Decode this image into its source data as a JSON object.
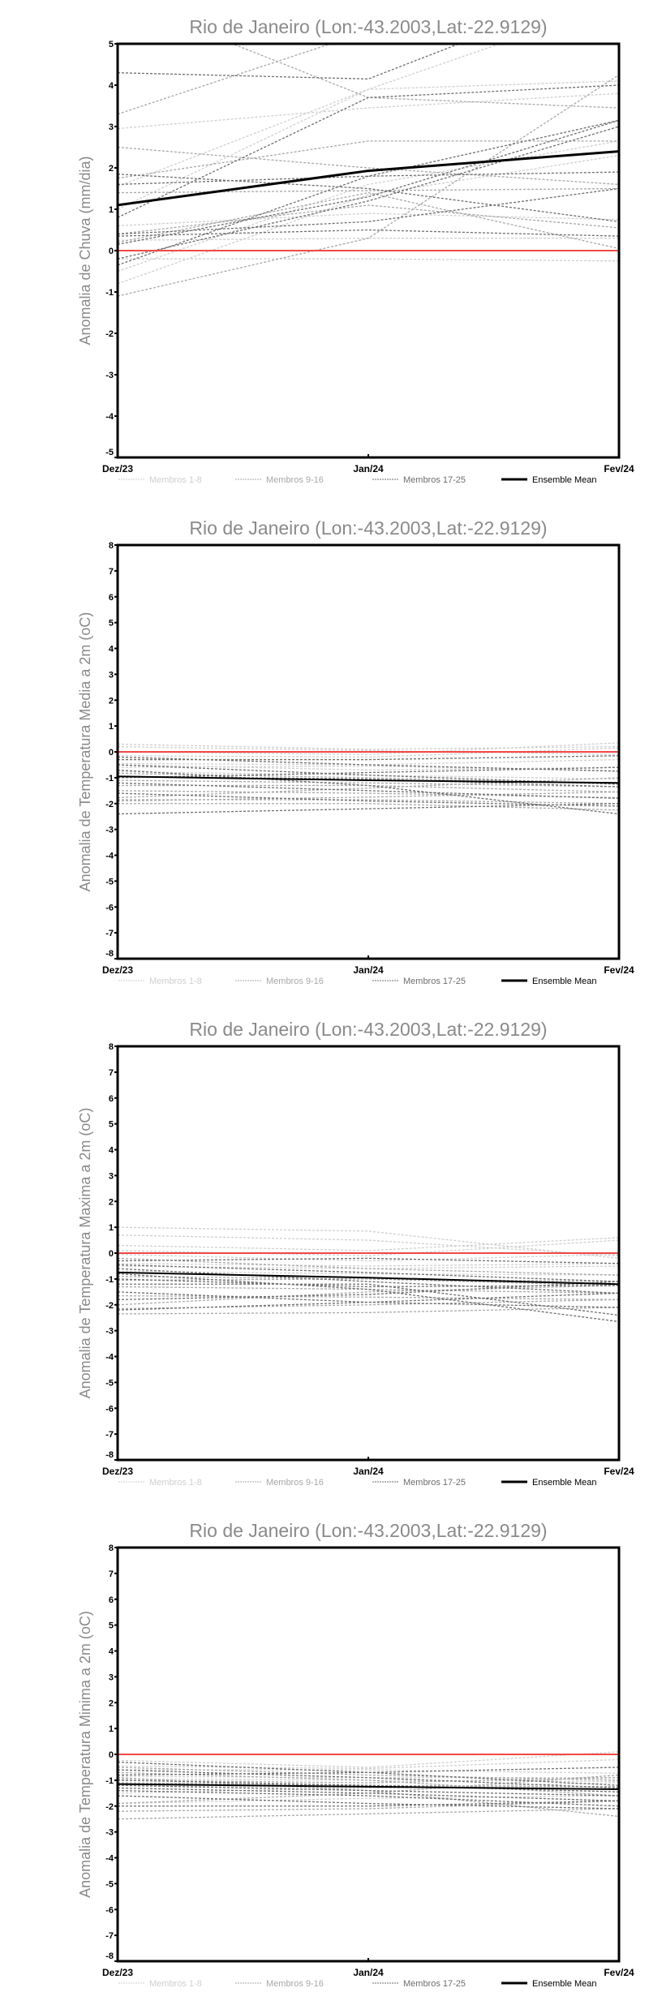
{
  "colors": {
    "members_1_8": "#cfcfcf",
    "members_9_16": "#a8a8a8",
    "members_17_25": "#6e6e6e",
    "ensemble_mean": "#000000",
    "zero_line": "#f04848"
  },
  "legend": {
    "members_1_8": "Membros 1-8",
    "members_9_16": "Membros 9-16",
    "members_17_25": "Membros 17-25",
    "ensemble_mean": "Ensemble Mean"
  },
  "chart_data": [
    {
      "type": "line",
      "title": "Rio de Janeiro (Lon:-43.2003,Lat:-22.9129)",
      "ylabel": "Anomalia de Chuva (mm/dia)",
      "xlabel": "",
      "categories": [
        "Dez/23",
        "Jan/24",
        "Fev/24"
      ],
      "ylim": [
        -5,
        5
      ],
      "yticks": [
        "-5",
        "-4",
        "-3",
        "-2",
        "-1",
        "0",
        "1",
        "2",
        "3",
        "4",
        "5"
      ],
      "ensemble_mean": [
        1.1,
        1.93,
        2.4
      ],
      "members": [
        [
          2.95,
          3.45,
          3.8
        ],
        [
          1.55,
          3.9,
          4.1
        ],
        [
          1.0,
          3.9,
          6.0
        ],
        [
          0.6,
          0.9,
          0.75
        ],
        [
          0.25,
          0.3,
          0.3
        ],
        [
          -0.5,
          1.6,
          2.65
        ],
        [
          -0.8,
          1.35,
          2.3
        ],
        [
          -0.2,
          -0.2,
          -0.25
        ],
        [
          3.3,
          5.3,
          6.5
        ],
        [
          2.5,
          2.0,
          1.6
        ],
        [
          6.1,
          3.7,
          3.45
        ],
        [
          1.75,
          2.65,
          2.65
        ],
        [
          -1.1,
          0.3,
          4.25
        ],
        [
          0.2,
          1.4,
          0.05
        ],
        [
          0.4,
          1.1,
          0.55
        ],
        [
          1.4,
          1.45,
          1.5
        ],
        [
          4.3,
          4.15,
          6.5
        ],
        [
          1.85,
          1.5,
          0.7
        ],
        [
          1.6,
          1.8,
          1.9
        ],
        [
          0.8,
          3.7,
          4.0
        ],
        [
          0.4,
          0.7,
          1.5
        ],
        [
          0.35,
          0.5,
          0.35
        ],
        [
          0.15,
          1.3,
          3.15
        ],
        [
          -0.2,
          1.2,
          3.0
        ],
        [
          -0.35,
          1.8,
          3.15
        ]
      ]
    },
    {
      "type": "line",
      "title": "Rio de Janeiro (Lon:-43.2003,Lat:-22.9129)",
      "ylabel": "Anomalia de Temperatura Media a 2m (oC)",
      "xlabel": "",
      "categories": [
        "Dez/23",
        "Jan/24",
        "Fev/24"
      ],
      "ylim": [
        -8,
        8
      ],
      "yticks": [
        "-8",
        "-7",
        "-6",
        "-5",
        "-4",
        "-3",
        "-2",
        "-1",
        "0",
        "1",
        "2",
        "3",
        "4",
        "5",
        "6",
        "7",
        "8"
      ],
      "ensemble_mean": [
        -0.95,
        -1.1,
        -1.2
      ],
      "members": [
        [
          0.3,
          0.1,
          0.2
        ],
        [
          0.2,
          0.05,
          -0.1
        ],
        [
          0.0,
          -0.1,
          0.35
        ],
        [
          -0.15,
          -0.2,
          0.15
        ],
        [
          -0.45,
          -0.5,
          -0.3
        ],
        [
          -0.5,
          -0.7,
          -0.6
        ],
        [
          -0.6,
          -0.55,
          -0.73
        ],
        [
          -0.77,
          -0.9,
          -1.05
        ],
        [
          -0.83,
          -1.0,
          -1.25
        ],
        [
          -1.1,
          -1.2,
          -1.35
        ],
        [
          -1.3,
          -1.3,
          -1.55
        ],
        [
          -1.5,
          -1.6,
          -1.77
        ],
        [
          -1.77,
          -1.4,
          -1.0
        ],
        [
          -1.85,
          -1.85,
          -2.0
        ],
        [
          -1.9,
          -1.75,
          -1.55
        ],
        [
          -2.0,
          -2.0,
          -2.25
        ],
        [
          -2.4,
          -2.2,
          -2.0
        ],
        [
          -0.2,
          -0.5,
          -0.75
        ],
        [
          -0.95,
          -1.05,
          -1.35
        ],
        [
          -0.7,
          -1.3,
          -2.4
        ],
        [
          -1.0,
          -0.8,
          -0.6
        ],
        [
          -0.5,
          -0.9,
          -1.25
        ],
        [
          -1.2,
          -1.5,
          -1.8
        ],
        [
          -0.3,
          -0.3,
          -0.15
        ],
        [
          -1.6,
          -1.9,
          -2.1
        ]
      ]
    },
    {
      "type": "line",
      "title": "Rio de Janeiro (Lon:-43.2003,Lat:-22.9129)",
      "ylabel": "Anomalia de Temperatura Maxima a 2m (oC)",
      "xlabel": "",
      "categories": [
        "Dez/23",
        "Jan/24",
        "Fev/24"
      ],
      "ylim": [
        -8,
        8
      ],
      "yticks": [
        "-8",
        "-7",
        "-6",
        "-5",
        "-4",
        "-3",
        "-2",
        "-1",
        "0",
        "1",
        "2",
        "3",
        "4",
        "5",
        "6",
        "7",
        "8"
      ],
      "ensemble_mean": [
        -0.75,
        -0.95,
        -1.2
      ],
      "members": [
        [
          1.0,
          0.85,
          -0.2
        ],
        [
          0.7,
          0.5,
          -0.1
        ],
        [
          0.3,
          0.1,
          0.6
        ],
        [
          0.1,
          -0.1,
          0.5
        ],
        [
          -0.05,
          -0.3,
          -0.05
        ],
        [
          -0.4,
          -0.5,
          -0.4
        ],
        [
          -0.5,
          -0.6,
          -0.5
        ],
        [
          -0.7,
          -0.8,
          -0.85
        ],
        [
          -0.9,
          -1.0,
          -1.1
        ],
        [
          -1.05,
          -1.0,
          -1.25
        ],
        [
          -1.3,
          -1.4,
          -1.55
        ],
        [
          -1.65,
          -1.7,
          -1.8
        ],
        [
          -2.0,
          -1.5,
          -1.25
        ],
        [
          -2.15,
          -2.0,
          -1.8
        ],
        [
          -2.35,
          -2.3,
          -2.1
        ],
        [
          -0.2,
          -0.6,
          -0.85
        ],
        [
          -0.8,
          -1.4,
          -2.65
        ],
        [
          -1.2,
          -1.2,
          -2.4
        ],
        [
          -1.5,
          -1.9,
          -2.1
        ],
        [
          -0.6,
          -1.1,
          -1.55
        ],
        [
          -0.3,
          -0.2,
          -0.4
        ],
        [
          -1.8,
          -1.6,
          -1.1
        ],
        [
          -1.0,
          -1.3,
          -1.25
        ],
        [
          -2.2,
          -1.9,
          -1.55
        ],
        [
          -0.45,
          -0.75,
          -1.1
        ]
      ]
    },
    {
      "type": "line",
      "title": "Rio de Janeiro (Lon:-43.2003,Lat:-22.9129)",
      "ylabel": "Anomalia de Temperatura Minima a 2m (oC)",
      "xlabel": "",
      "categories": [
        "Dez/23",
        "Jan/24",
        "Fev/24"
      ],
      "ylim": [
        -8,
        8
      ],
      "yticks": [
        "-8",
        "-7",
        "-6",
        "-5",
        "-4",
        "-3",
        "-2",
        "-1",
        "0",
        "1",
        "2",
        "3",
        "4",
        "5",
        "6",
        "7",
        "8"
      ],
      "ensemble_mean": [
        -1.15,
        -1.25,
        -1.35
      ],
      "members": [
        [
          -0.23,
          -0.5,
          0.1
        ],
        [
          -0.45,
          -0.55,
          -0.2
        ],
        [
          -0.6,
          -0.6,
          -0.73
        ],
        [
          -0.85,
          -0.9,
          -0.9
        ],
        [
          -0.95,
          -1.0,
          -1.05
        ],
        [
          -1.2,
          -1.3,
          -1.25
        ],
        [
          -1.5,
          -1.3,
          -1.1
        ],
        [
          -1.9,
          -1.7,
          -1.6
        ],
        [
          -2.2,
          -2.1,
          -1.8
        ],
        [
          -2.5,
          -2.3,
          -2.1
        ],
        [
          -0.7,
          -1.0,
          -1.6
        ],
        [
          -0.9,
          -1.4,
          -2.4
        ],
        [
          -1.0,
          -1.1,
          -0.9
        ],
        [
          -1.1,
          -1.2,
          -1.25
        ],
        [
          -1.9,
          -1.5,
          -0.8
        ],
        [
          -0.5,
          -0.8,
          -1.0
        ],
        [
          -1.3,
          -1.5,
          -1.8
        ],
        [
          -1.6,
          -1.9,
          -2.1
        ],
        [
          -0.8,
          -0.7,
          -0.5
        ],
        [
          -1.2,
          -1.4,
          -1.6
        ],
        [
          -2.0,
          -2.0,
          -1.8
        ],
        [
          -0.3,
          -0.7,
          -1.2
        ],
        [
          -1.0,
          -1.2,
          -1.45
        ],
        [
          -1.4,
          -1.6,
          -2.0
        ],
        [
          -0.6,
          -0.9,
          -1.3
        ]
      ]
    }
  ]
}
